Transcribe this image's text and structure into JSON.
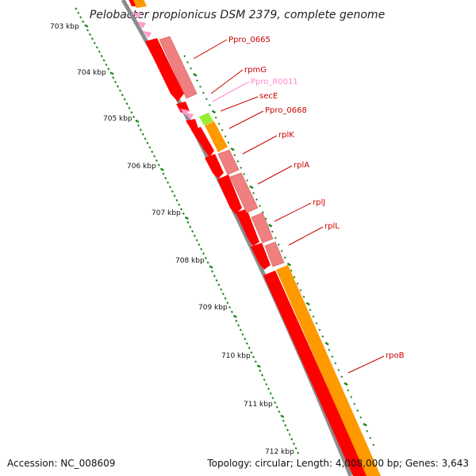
{
  "title": "Pelobacter propionicus DSM 2379, complete genome",
  "footer": {
    "accession": "Accession: NC_008609",
    "summary": "Topology: circular; Length: 4,008,000 bp; Genes: 3,643"
  },
  "colors": {
    "backbone": "#8c8c8c",
    "cds_reverse": "#ff0000",
    "cds_forward": "#f08080",
    "orange_gene": "#ff9900",
    "green_gene": "#99ee33",
    "trna": "#ff99cc",
    "tick": "#1a8a1a",
    "label_line": "#cc0000"
  },
  "ticks": [
    "703 kbp",
    "704 kbp",
    "705 kbp",
    "706 kbp",
    "707 kbp",
    "708 kbp",
    "709 kbp",
    "710 kbp",
    "711 kbp",
    "712 kbp"
  ],
  "genes": [
    {
      "name": "Ppro_0665",
      "color": "#cc0000"
    },
    {
      "name": "rpmG",
      "color": "#cc0000"
    },
    {
      "name": "Ppro_R0011",
      "color": "#ff88cc"
    },
    {
      "name": "secE",
      "color": "#cc0000"
    },
    {
      "name": "Ppro_0668",
      "color": "#cc0000"
    },
    {
      "name": "rplK",
      "color": "#cc0000"
    },
    {
      "name": "rplA",
      "color": "#cc0000"
    },
    {
      "name": "rplJ",
      "color": "#cc0000"
    },
    {
      "name": "rplL",
      "color": "#cc0000"
    },
    {
      "name": "rpoB",
      "color": "#cc0000"
    }
  ]
}
